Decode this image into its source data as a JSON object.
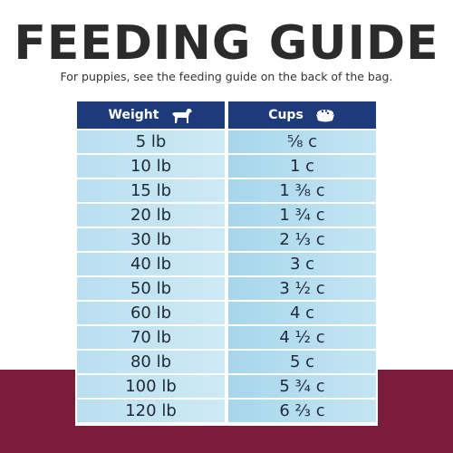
{
  "header": {
    "title": "FEEDING GUIDE",
    "subtitle": "For puppies, see the feeding guide on the back of the bag."
  },
  "table": {
    "columns": [
      "Weight",
      "Cups"
    ],
    "rows": [
      [
        "5 lb",
        "⅝ c"
      ],
      [
        "10 lb",
        "1 c"
      ],
      [
        "15 lb",
        "1 ⅜ c"
      ],
      [
        "20 lb",
        "1 ¾ c"
      ],
      [
        "30 lb",
        "2 ⅓ c"
      ],
      [
        "40 lb",
        "3 c"
      ],
      [
        "50 lb",
        "3 ½ c"
      ],
      [
        "60 lb",
        "4 c"
      ],
      [
        "70 lb",
        "4 ½ c"
      ],
      [
        "80 lb",
        "5 c"
      ],
      [
        "100 lb",
        "5 ¾ c"
      ],
      [
        "120 lb",
        "6 ⅔ c"
      ]
    ]
  }
}
